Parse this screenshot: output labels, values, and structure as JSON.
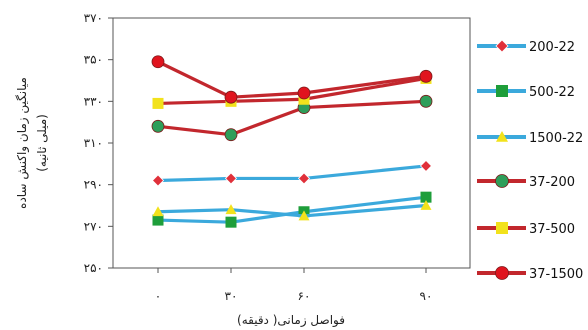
{
  "chart_data": {
    "type": "line",
    "x_categories": [
      "۰",
      "۳۰",
      "۶۰",
      "۹۰"
    ],
    "x": [
      0,
      30,
      60,
      90
    ],
    "xlabel": "فواصل زمانی( دقیقه)",
    "ylabel_line1": "میانگین زمان واکنش ساده",
    "ylabel_line2": "(میلی ثانیه)",
    "ylim": [
      250,
      370
    ],
    "yticks": [
      250,
      270,
      290,
      310,
      330,
      350,
      370
    ],
    "ytick_labels": [
      "۲۵۰",
      "۲۷۰",
      "۲۹۰",
      "۳۱۰",
      "۳۳۰",
      "۳۵۰",
      "۳۷۰"
    ],
    "grid": false,
    "legend_position": "right",
    "series": [
      {
        "name": "200-22",
        "color": "#3BA9DC",
        "marker": "diamond",
        "marker_color": "#E0303A",
        "values": [
          292,
          293,
          293,
          299
        ]
      },
      {
        "name": "500-22",
        "color": "#3BA9DC",
        "marker": "square",
        "marker_color": "#1E9E3A",
        "values": [
          273,
          272,
          277,
          284
        ]
      },
      {
        "name": "1500-22",
        "color": "#3BA9DC",
        "marker": "triangle",
        "marker_color": "#F2E21C",
        "values": [
          277,
          278,
          275,
          280
        ]
      },
      {
        "name": "37-200",
        "color": "#C2272D",
        "marker": "circle",
        "marker_color": "#2E9E5A",
        "values": [
          318,
          314,
          327,
          330
        ]
      },
      {
        "name": "37-500",
        "color": "#C2272D",
        "marker": "square",
        "marker_color": "#F2E21C",
        "values": [
          329,
          330,
          331,
          341
        ]
      },
      {
        "name": "37-1500",
        "color": "#C2272D",
        "marker": "circle",
        "marker_color": "#E0141E",
        "values": [
          349,
          332,
          334,
          342
        ]
      }
    ]
  }
}
